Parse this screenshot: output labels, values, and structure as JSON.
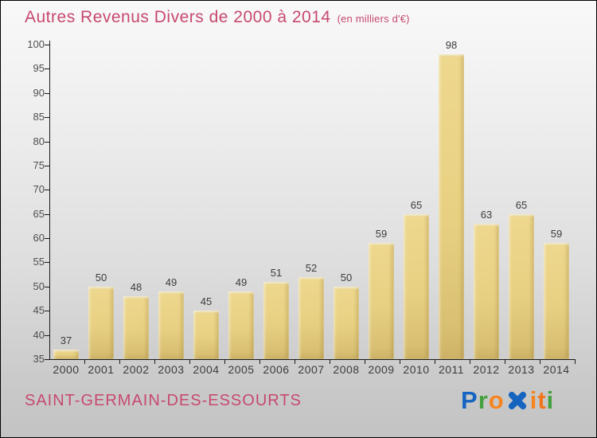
{
  "header": {
    "title": "Autres Revenus Divers de 2000 à 2014",
    "subtitle": "(en milliers d'€)",
    "title_color": "#c7496f"
  },
  "chart_data": {
    "type": "bar",
    "title": "Autres Revenus Divers de 2000 à 2014",
    "subtitle": "(en milliers d'€)",
    "categories": [
      "2000",
      "2001",
      "2002",
      "2003",
      "2004",
      "2005",
      "2006",
      "2007",
      "2008",
      "2009",
      "2010",
      "2011",
      "2012",
      "2013",
      "2014"
    ],
    "values": [
      37,
      50,
      48,
      49,
      45,
      49,
      51,
      52,
      50,
      59,
      65,
      98,
      63,
      65,
      59
    ],
    "xlabel": "",
    "ylabel": "",
    "ylim": [
      35,
      100
    ],
    "ytick_step": 5,
    "grid": false,
    "legend": false,
    "value_labels": true,
    "bar_color": "#e6cf82",
    "axis_color": "#1a1a1a",
    "label_color": "#3c3c3c"
  },
  "footer": {
    "commune": "SAINT-GERMAIN-DES-ESSOURTS",
    "commune_color": "#c7496f",
    "logo": {
      "brand": "Proxiti",
      "letters": [
        {
          "char": "P",
          "color": "#1565c0"
        },
        {
          "char": "r",
          "color": "#44a13d"
        },
        {
          "char": "o",
          "color": "#f6851f"
        },
        {
          "icon": "x-icon",
          "color": "#1565c0"
        },
        {
          "char": "i",
          "color": "#f6851f"
        },
        {
          "char": "t",
          "color": "#f0761c"
        },
        {
          "char": "i",
          "color": "#44a13d"
        }
      ]
    }
  }
}
